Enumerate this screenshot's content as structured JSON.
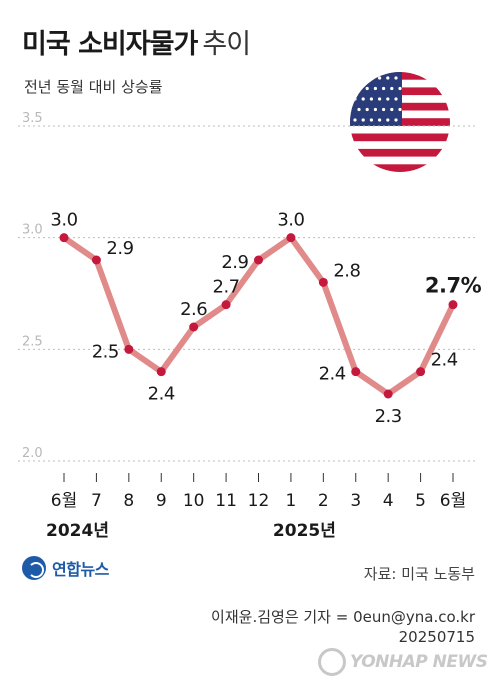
{
  "header": {
    "title_bold": "미국 소비자물가",
    "title_light": "추이",
    "subtitle": "전년 동월 대비 상승률"
  },
  "chart_data": {
    "type": "line",
    "title": "미국 소비자물가 추이",
    "subtitle": "전년 동월 대비 상승률",
    "categories": [
      "6월",
      "7",
      "8",
      "9",
      "10",
      "11",
      "12",
      "1",
      "2",
      "3",
      "4",
      "5",
      "6월"
    ],
    "year_labels": [
      {
        "text": "2024년",
        "category_index": 0
      },
      {
        "text": "2025년",
        "category_index": 7
      }
    ],
    "values": [
      3.0,
      2.9,
      2.5,
      2.4,
      2.6,
      2.7,
      2.9,
      3.0,
      2.8,
      2.4,
      2.3,
      2.4,
      2.7
    ],
    "value_labels": [
      "3.0",
      "2.9",
      "2.5",
      "2.4",
      "2.6",
      "2.7",
      "2.9",
      "3.0",
      "2.8",
      "2.4",
      "2.3",
      "2.4",
      "2.7%"
    ],
    "label_side": [
      "above",
      "right",
      "left",
      "below",
      "above",
      "above",
      "left",
      "above",
      "right",
      "left",
      "below",
      "right",
      "above"
    ],
    "y_ticks": [
      "3.5",
      "3.0",
      "2.5",
      "2.0"
    ],
    "ylim": [
      2.0,
      3.5
    ],
    "grid": true,
    "colors": {
      "line": "#e08a8a",
      "marker": "#c4183c",
      "grid": "#bdbdbd",
      "tick": "#b8b8b8"
    }
  },
  "footer": {
    "logo_text": "연합뉴스",
    "source": "자료: 미국 노동부",
    "credit_line1": "이재윤.김영은 기자 = 0eun@yna.co.kr",
    "credit_line2": "20250715",
    "watermark": "YONHAP NEWS"
  },
  "icons": {
    "flag": "us-flag-icon",
    "logo": "yonhap-logo-icon"
  }
}
